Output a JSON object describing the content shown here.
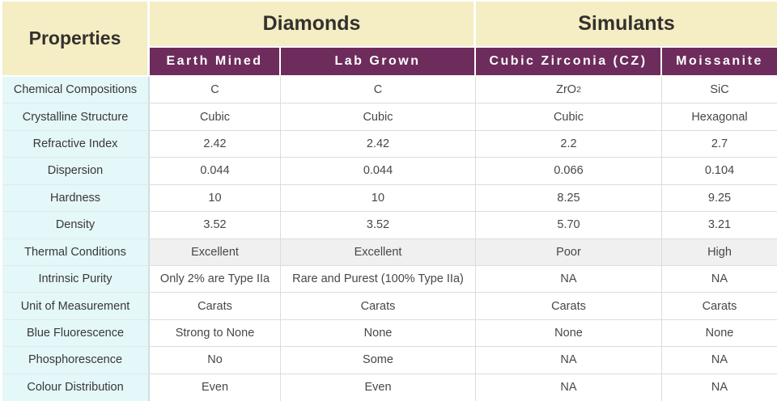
{
  "palette": {
    "header_bg": "#f5edc3",
    "subheader_bg": "#6d2c5c",
    "subheader_text": "#ffffff",
    "property_col_bg": "#e4f7f9",
    "shaded_row_bg": "#f0f0f0",
    "grid_line": "#dcdcdc"
  },
  "table": {
    "corner_header": "Properties",
    "groups": [
      {
        "label": "Diamonds"
      },
      {
        "label": "Simulants"
      }
    ],
    "columns": [
      "Earth Mined",
      "Lab Grown",
      "Cubic Zirconia (CZ)",
      "Moissanite"
    ],
    "rows": [
      {
        "property": "Chemical Compositions",
        "values": [
          "C",
          "C",
          {
            "base": "ZrO",
            "sub": "2"
          },
          "SiC"
        ]
      },
      {
        "property": "Crystalline Structure",
        "values": [
          "Cubic",
          "Cubic",
          "Cubic",
          "Hexagonal"
        ]
      },
      {
        "property": "Refractive Index",
        "values": [
          "2.42",
          "2.42",
          "2.2",
          "2.7"
        ]
      },
      {
        "property": "Dispersion",
        "values": [
          "0.044",
          "0.044",
          "0.066",
          "0.104"
        ]
      },
      {
        "property": "Hardness",
        "values": [
          "10",
          "10",
          "8.25",
          "9.25"
        ]
      },
      {
        "property": "Density",
        "values": [
          "3.52",
          "3.52",
          "5.70",
          "3.21"
        ]
      },
      {
        "property": "Thermal Conditions",
        "values": [
          "Excellent",
          "Excellent",
          "Poor",
          "High"
        ]
      },
      {
        "property": "Intrinsic Purity",
        "values": [
          "Only 2% are Type IIa",
          "Rare and Purest (100% Type IIa)",
          "NA",
          "NA"
        ]
      },
      {
        "property": "Unit of Measurement",
        "values": [
          "Carats",
          "Carats",
          "Carats",
          "Carats"
        ]
      },
      {
        "property": "Blue Fluorescence",
        "values": [
          "Strong to None",
          "None",
          "None",
          "None"
        ]
      },
      {
        "property": "Phosphorescence",
        "values": [
          "No",
          "Some",
          "NA",
          "NA"
        ]
      },
      {
        "property": "Colour Distribution",
        "values": [
          "Even",
          "Even",
          "NA",
          "NA"
        ]
      }
    ]
  }
}
